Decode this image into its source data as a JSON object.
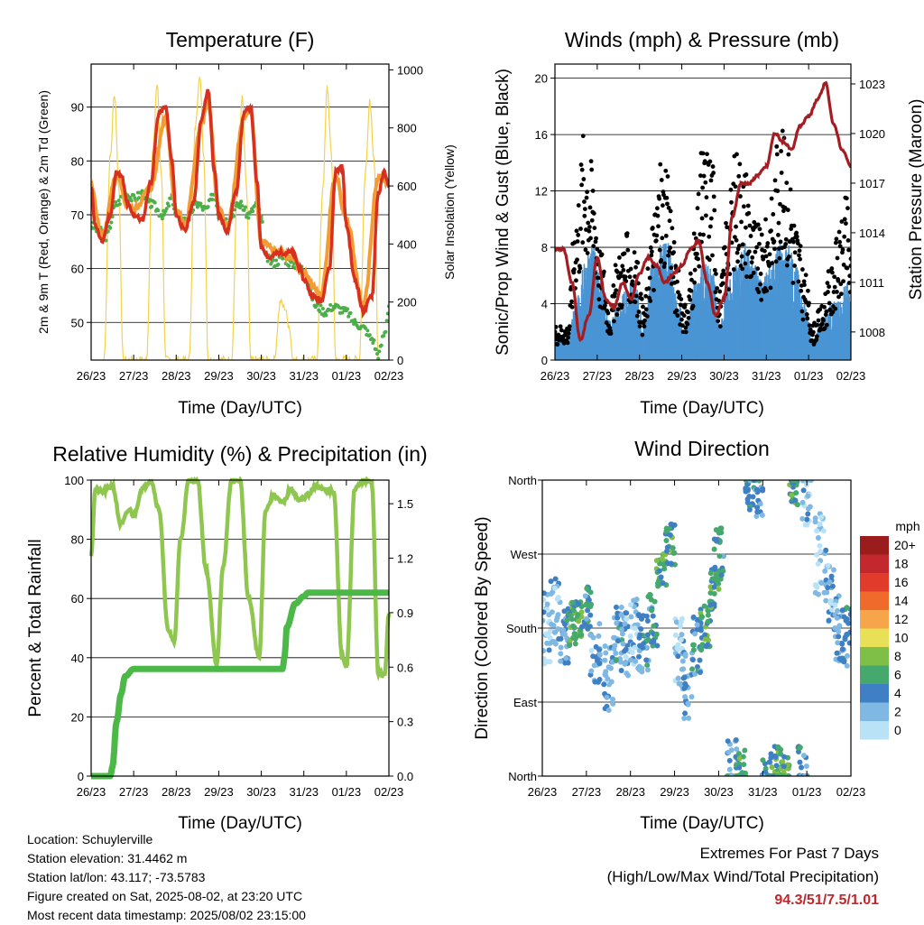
{
  "chart_data": [
    {
      "type": "line",
      "title": "Temperature (F)",
      "xlabel": "Time (Day/UTC)",
      "ylabel": "2m & 9m T (Red, Orange) & 2m Td (Green)",
      "ylabel_right": "Solar Insolation (Yellow)",
      "x_ticks": [
        "26/23",
        "27/23",
        "28/23",
        "29/23",
        "30/23",
        "31/23",
        "01/23",
        "02/23"
      ],
      "ylim": [
        43,
        98
      ],
      "y_ticks": [
        50,
        60,
        70,
        80,
        90
      ],
      "ylim_right": [
        0,
        1020
      ],
      "y_ticks_right": [
        0,
        200,
        400,
        600,
        800,
        1000
      ],
      "colors": {
        "t2m": "#d7301f",
        "t9m": "#f39c33",
        "td": "#4daf4a",
        "solar": "#f5d24a"
      },
      "series": [
        {
          "name": "2m T",
          "x": [
            0,
            0.1,
            0.25,
            0.45,
            0.6,
            0.72,
            0.85,
            1.0,
            1.2,
            1.4,
            1.6,
            1.75,
            1.9,
            2.0,
            2.2,
            2.4,
            2.6,
            2.75,
            2.9,
            3.0,
            3.2,
            3.4,
            3.6,
            3.75,
            3.9,
            4.0,
            4.2,
            4.4,
            4.6,
            4.75,
            4.9,
            5.0,
            5.2,
            5.4,
            5.6,
            5.75,
            5.9,
            6.0,
            6.2,
            6.4,
            6.6,
            6.75,
            6.9,
            7.0
          ],
          "values": [
            75,
            68,
            65,
            70,
            78,
            77,
            72,
            70,
            69,
            76,
            89,
            90,
            80,
            70,
            67,
            72,
            88,
            93,
            78,
            70,
            67,
            74,
            89,
            90,
            76,
            64,
            62,
            63,
            63,
            63,
            60,
            58,
            55,
            54,
            60,
            78,
            79,
            68,
            58,
            52,
            55,
            74,
            78,
            75
          ]
        },
        {
          "name": "9m T",
          "x": [
            0,
            0.25,
            0.6,
            0.85,
            1.0,
            1.4,
            1.75,
            2.0,
            2.2,
            2.6,
            2.75,
            3.0,
            3.2,
            3.6,
            3.75,
            4.0,
            4.4,
            4.75,
            5.0,
            5.4,
            5.75,
            6.0,
            6.4,
            6.75,
            7.0
          ],
          "values": [
            75,
            66,
            77,
            72,
            71,
            75,
            88,
            71,
            68,
            87,
            91,
            71,
            68,
            88,
            89,
            65,
            63,
            62,
            59,
            55,
            77,
            69,
            53,
            77,
            76
          ]
        },
        {
          "name": "2m Td",
          "x": [
            0,
            0.2,
            0.35,
            0.6,
            0.8,
            1.0,
            1.2,
            1.4,
            1.7,
            1.9,
            2.0,
            2.2,
            2.5,
            2.7,
            2.9,
            3.0,
            3.2,
            3.5,
            3.7,
            3.9,
            4.0,
            4.1,
            4.3,
            4.5,
            4.7,
            5.0,
            5.3,
            5.5,
            5.7,
            6.0,
            6.2,
            6.4,
            6.6,
            6.75,
            6.9,
            7.0
          ],
          "values": [
            68,
            67,
            66,
            72,
            74,
            73,
            74,
            72,
            70,
            73,
            70,
            69,
            72,
            71,
            74,
            70,
            69,
            72,
            70,
            72,
            69,
            62,
            61,
            62,
            61,
            60,
            53,
            52,
            53,
            52,
            50,
            49,
            47,
            44,
            48,
            53
          ]
        },
        {
          "name": "Solar Insolation",
          "axis": "right",
          "x": [
            0.3,
            0.45,
            0.55,
            0.65,
            0.75,
            1.3,
            1.45,
            1.55,
            1.65,
            1.75,
            2.3,
            2.45,
            2.55,
            2.65,
            2.75,
            3.3,
            3.45,
            3.55,
            3.65,
            3.75,
            4.3,
            4.45,
            4.55,
            4.65,
            4.75,
            5.3,
            5.45,
            5.55,
            5.65,
            5.75,
            6.3,
            6.45,
            6.55,
            6.65,
            6.75
          ],
          "values": [
            0,
            700,
            920,
            600,
            0,
            0,
            720,
            950,
            650,
            0,
            0,
            800,
            990,
            700,
            0,
            0,
            650,
            900,
            600,
            0,
            0,
            200,
            180,
            120,
            0,
            0,
            600,
            940,
            700,
            0,
            0,
            650,
            900,
            700,
            0
          ]
        }
      ]
    },
    {
      "type": "scatter",
      "title": "Winds (mph) & Pressure (mb)",
      "xlabel": "Time (Day/UTC)",
      "ylabel": "Sonic/Prop Wind & Gust (Blue, Black)",
      "ylabel_right": "Station Pressure (Maroon)",
      "x_ticks": [
        "26/23",
        "27/23",
        "28/23",
        "29/23",
        "30/23",
        "31/23",
        "01/23",
        "02/23"
      ],
      "ylim": [
        0,
        21
      ],
      "y_ticks": [
        0,
        4,
        8,
        12,
        16,
        20
      ],
      "ylim_right": [
        1006.3,
        1024.2
      ],
      "y_ticks_right": [
        1008,
        1011,
        1014,
        1017,
        1020,
        1023
      ],
      "colors": {
        "wind": "#4a95d4",
        "gust": "#000000",
        "pressure": "#a31d22"
      },
      "series": [
        {
          "name": "Sonic/Prop Wind",
          "x": [
            0,
            0.3,
            0.5,
            0.7,
            0.9,
            1.1,
            1.3,
            1.5,
            1.7,
            1.9,
            2.1,
            2.3,
            2.5,
            2.7,
            2.9,
            3.1,
            3.3,
            3.5,
            3.7,
            3.9,
            4.1,
            4.3,
            4.5,
            4.7,
            4.9,
            5.1,
            5.3,
            5.5,
            5.7,
            5.9,
            6.1,
            6.3,
            6.5,
            6.7,
            6.9,
            7.0
          ],
          "values": [
            1.5,
            1,
            3,
            5,
            6,
            4,
            2,
            3,
            4,
            4,
            2,
            5,
            6,
            6,
            3,
            2,
            4,
            5,
            5,
            2,
            4,
            5,
            6,
            5,
            4,
            5,
            6,
            6,
            5,
            3,
            1,
            2,
            3,
            3,
            4,
            3
          ]
        },
        {
          "name": "Gust",
          "x": [
            0,
            0.3,
            0.5,
            0.7,
            0.9,
            1.1,
            1.3,
            1.5,
            1.7,
            1.9,
            2.1,
            2.3,
            2.5,
            2.7,
            2.9,
            3.1,
            3.3,
            3.5,
            3.7,
            3.9,
            4.1,
            4.3,
            4.5,
            4.7,
            4.9,
            5.1,
            5.3,
            5.5,
            5.7,
            5.9,
            6.1,
            6.3,
            6.5,
            6.7,
            6.9,
            7.0
          ],
          "values": [
            2,
            2,
            9,
            13,
            11,
            6,
            3,
            6,
            7,
            6,
            3,
            8,
            11,
            10,
            5,
            3,
            7,
            12,
            12,
            4,
            9,
            12,
            11,
            8,
            7,
            9,
            13,
            12,
            8,
            5,
            2,
            3,
            5,
            7,
            9,
            6
          ]
        },
        {
          "name": "Station Pressure",
          "axis": "right",
          "x": [
            0,
            0.2,
            0.4,
            0.6,
            0.8,
            1.0,
            1.2,
            1.4,
            1.6,
            1.8,
            2.0,
            2.2,
            2.4,
            2.6,
            2.8,
            3.0,
            3.2,
            3.4,
            3.6,
            3.8,
            4.0,
            4.2,
            4.4,
            4.6,
            4.8,
            5.0,
            5.2,
            5.4,
            5.6,
            5.8,
            6.0,
            6.2,
            6.4,
            6.6,
            6.8,
            7.0
          ],
          "values": [
            1013,
            1013,
            1011,
            1007.5,
            1009,
            1012.5,
            1010,
            1009.5,
            1011,
            1010,
            1011.5,
            1012.5,
            1012,
            1011,
            1011.5,
            1012,
            1013,
            1013.5,
            1011,
            1009,
            1010,
            1015,
            1017,
            1017,
            1017.5,
            1018,
            1020,
            1019.5,
            1019,
            1020.5,
            1021,
            1022,
            1023,
            1020.5,
            1019,
            1018
          ]
        }
      ]
    },
    {
      "type": "line",
      "title": "Relative Humidity (%) & Precipitation (in)",
      "xlabel": "Time (Day/UTC)",
      "ylabel": "Percent & Total Rainfall",
      "x_ticks": [
        "26/23",
        "27/23",
        "28/23",
        "29/23",
        "30/23",
        "31/23",
        "01/23",
        "02/23"
      ],
      "ylim": [
        0,
        100
      ],
      "y_ticks": [
        0,
        20,
        40,
        60,
        80,
        100
      ],
      "ylim_right": [
        0,
        1.63
      ],
      "y_ticks_right": [
        "0.0",
        "0.3",
        "0.6",
        "0.9",
        "1.2",
        "1.5"
      ],
      "colors": {
        "rh": "#8fc64f",
        "precip": "#4cb848"
      },
      "series": [
        {
          "name": "RH",
          "x": [
            0,
            0.1,
            0.25,
            0.5,
            0.7,
            0.9,
            1.0,
            1.2,
            1.4,
            1.6,
            1.8,
            1.95,
            2.1,
            2.3,
            2.5,
            2.7,
            2.95,
            3.1,
            3.3,
            3.5,
            3.7,
            3.95,
            4.1,
            4.3,
            4.5,
            4.7,
            4.9,
            5.1,
            5.3,
            5.5,
            5.7,
            5.9,
            6.0,
            6.2,
            6.4,
            6.6,
            6.75,
            6.9,
            7.0
          ],
          "values": [
            75,
            97,
            96,
            98,
            85,
            90,
            88,
            97,
            100,
            90,
            50,
            45,
            80,
            100,
            100,
            70,
            38,
            70,
            100,
            100,
            60,
            40,
            90,
            95,
            92,
            97,
            93,
            95,
            98,
            97,
            96,
            40,
            37,
            97,
            100,
            99,
            35,
            34,
            55
          ]
        },
        {
          "name": "Total Rainfall",
          "axis": "right",
          "x": [
            0,
            0.45,
            0.5,
            0.6,
            0.7,
            0.8,
            1.0,
            1.5,
            2.5,
            3.5,
            4.5,
            4.55,
            4.6,
            4.8,
            5.0,
            5.1,
            5.3,
            6.0,
            7.0
          ],
          "values": [
            0,
            0,
            0.05,
            0.3,
            0.45,
            0.55,
            0.59,
            0.59,
            0.59,
            0.59,
            0.59,
            0.66,
            0.82,
            0.95,
            0.99,
            1.01,
            1.01,
            1.01,
            1.01
          ]
        }
      ]
    },
    {
      "type": "scatter",
      "title": "Wind Direction",
      "xlabel": "Time (Day/UTC)",
      "ylabel": "Direction (Colored By Speed)",
      "x_ticks": [
        "26/23",
        "27/23",
        "28/23",
        "29/23",
        "30/23",
        "31/23",
        "01/23",
        "02/23"
      ],
      "y_ticks": [
        "North",
        "East",
        "South",
        "West",
        "North"
      ],
      "y_tick_degrees": [
        0,
        90,
        180,
        270,
        360
      ],
      "colorbar": {
        "unit": "mph",
        "labels": [
          "20+",
          "18",
          "16",
          "14",
          "12",
          "10",
          "8",
          "6",
          "4",
          "2",
          "0"
        ],
        "colors": [
          "#9b1c1c",
          "#c2282d",
          "#e03b2b",
          "#f06a2c",
          "#f6a54a",
          "#e8e057",
          "#7fbf48",
          "#45a86c",
          "#3f7fc4",
          "#7fb8e3",
          "#b9e2f7"
        ]
      },
      "series": [
        {
          "name": "Direction",
          "x": [
            0.1,
            0.3,
            0.5,
            0.7,
            0.8,
            1.0,
            1.2,
            1.5,
            1.7,
            1.9,
            2.1,
            2.3,
            2.5,
            2.7,
            2.9,
            3.1,
            3.3,
            3.5,
            3.7,
            3.9,
            4.0,
            4.3,
            4.5,
            4.7,
            4.9,
            5.1,
            5.3,
            5.5,
            5.7,
            5.9,
            6.0,
            6.3,
            6.5,
            6.7,
            6.9
          ],
          "values": [
            180,
            200,
            170,
            185,
            190,
            200,
            150,
            120,
            170,
            160,
            175,
            160,
            190,
            250,
            280,
            150,
            110,
            160,
            180,
            230,
            270,
            10,
            5,
            355,
            350,
            0,
            10,
            5,
            355,
            5,
            340,
            270,
            230,
            180,
            170
          ],
          "speed": [
            2,
            3,
            4,
            6,
            7,
            5,
            3,
            3,
            4,
            3,
            2,
            4,
            5,
            7,
            6,
            2,
            3,
            4,
            6,
            6,
            5,
            4,
            6,
            5,
            4,
            5,
            6,
            7,
            6,
            5,
            2,
            1,
            2,
            3,
            4
          ]
        }
      ]
    }
  ],
  "footer": {
    "location": "Location: Schuylerville",
    "elevation": "Station elevation: 31.4462 m",
    "latlon": "Station lat/lon: 43.117; -73.5783",
    "created": "Figure created on Sat, 2025-08-02, at 23:20 UTC",
    "latest": "Most recent data timestamp: 2025/08/02 23:15:00"
  },
  "extremes": {
    "heading": "Extremes For Past 7 Days",
    "legend": "(High/Low/Max Wind/Total Precipitation)",
    "values": "94.3/51/7.5/1.01"
  }
}
